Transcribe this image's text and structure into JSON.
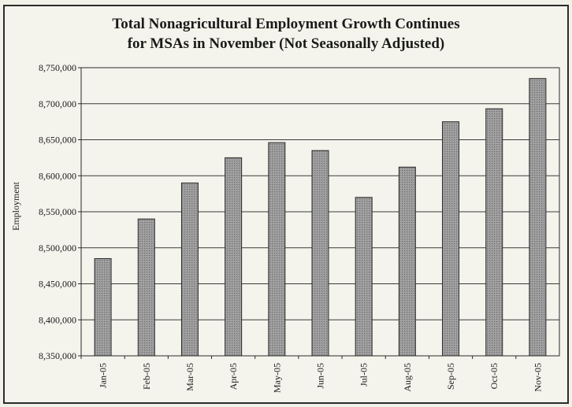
{
  "chart_data": {
    "type": "bar",
    "title_line1": "Total Nonagricultural Employment Growth Continues",
    "title_line2": "for MSAs in November (Not Seasonally Adjusted)",
    "ylabel": "Employment",
    "categories": [
      "Jan-05",
      "Feb-05",
      "Mar-05",
      "Apr-05",
      "May-05",
      "Jun-05",
      "Jul-05",
      "Aug-05",
      "Sep-05",
      "Oct-05",
      "Nov-05"
    ],
    "values": [
      8485000,
      8540000,
      8590000,
      8625000,
      8646000,
      8635000,
      8570000,
      8612000,
      8675000,
      8693000,
      8735000
    ],
    "ylim": [
      8350000,
      8750000
    ],
    "yticks": [
      8350000,
      8400000,
      8450000,
      8500000,
      8550000,
      8600000,
      8650000,
      8700000,
      8750000
    ],
    "ytick_labels": [
      "8,350,000",
      "8,400,000",
      "8,450,000",
      "8,500,000",
      "8,550,000",
      "8,600,000",
      "8,650,000",
      "8,700,000",
      "8,750,000"
    ],
    "grid": true,
    "bar_color": "#8c8c8c"
  }
}
